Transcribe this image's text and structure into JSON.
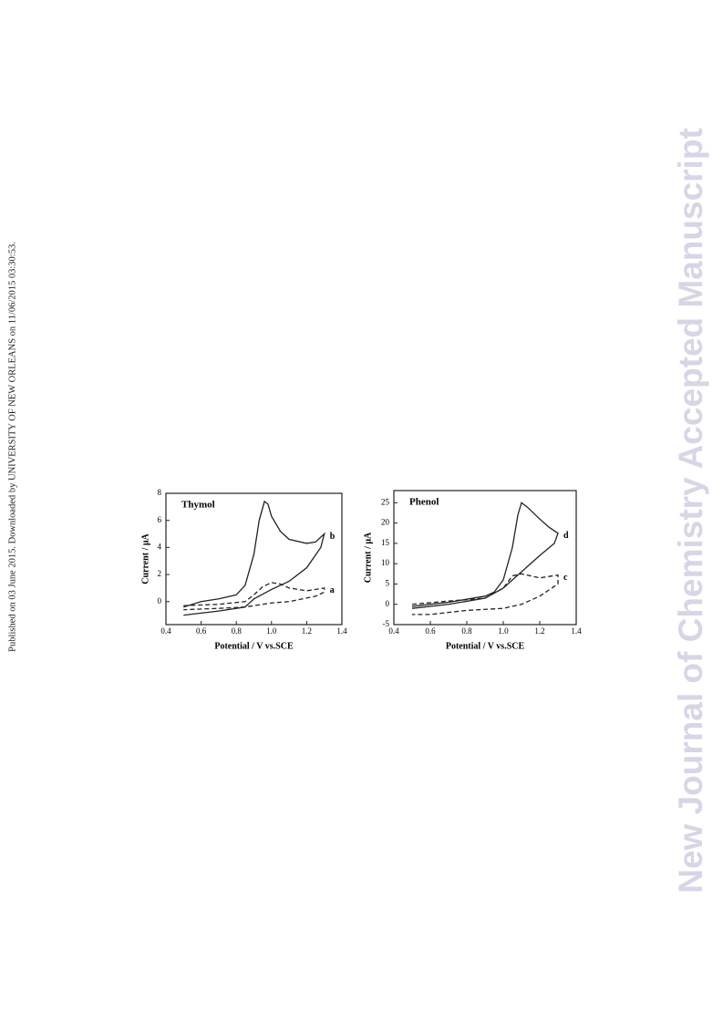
{
  "side_note": "Published on 03 June 2015. Downloaded by UNIVERSITY OF NEW ORLEANS on 11/06/2015 03:30:53.",
  "watermark": "New Journal of Chemistry Accepted Manuscript",
  "chart_data": [
    {
      "type": "line",
      "title": "Thymol",
      "x_label": "Potential / V vs.SCE",
      "y_label": "Current / μA",
      "xlim": [
        0.4,
        1.4
      ],
      "xticks": [
        0.4,
        0.6,
        0.8,
        {
          "value": 1,
          "label": "1.0"
        },
        1.2,
        1.4
      ],
      "ylim": [
        -1.7,
        8
      ],
      "yticks": [
        0,
        2,
        4,
        6,
        8
      ],
      "series": [
        {
          "name": "b",
          "color": "#222222",
          "style": "solid",
          "x": [
            0.5,
            0.6,
            0.7,
            0.8,
            0.85,
            0.9,
            0.93,
            0.96,
            0.98,
            1.0,
            1.05,
            1.1,
            1.2,
            1.25,
            1.3,
            1.28,
            1.2,
            1.1,
            1.0,
            0.9,
            0.85,
            0.7,
            0.5
          ],
          "values": [
            -0.4,
            0.0,
            0.2,
            0.5,
            1.2,
            3.5,
            6.0,
            7.4,
            7.2,
            6.3,
            5.2,
            4.6,
            4.3,
            4.4,
            5.0,
            4.0,
            2.5,
            1.5,
            0.9,
            0.2,
            -0.4,
            -0.7,
            -1.0
          ]
        },
        {
          "name": "a",
          "color": "#222222",
          "style": "dashed",
          "x": [
            0.5,
            0.7,
            0.85,
            0.9,
            0.95,
            1.0,
            1.05,
            1.1,
            1.2,
            1.3,
            1.3,
            1.25,
            1.1,
            1.0,
            0.85,
            0.7,
            0.5
          ],
          "values": [
            -0.3,
            -0.2,
            0.0,
            0.5,
            1.1,
            1.4,
            1.3,
            1.0,
            0.8,
            1.0,
            0.7,
            0.4,
            0.0,
            -0.1,
            -0.4,
            -0.5,
            -0.6
          ]
        }
      ]
    },
    {
      "type": "line",
      "title": "Phenol",
      "x_label": "Potential / V vs.SCE",
      "y_label": "Current / μA",
      "xlim": [
        0.4,
        1.4
      ],
      "xticks": [
        0.4,
        0.6,
        0.8,
        {
          "value": 1,
          "label": "1.0"
        },
        1.2,
        1.4
      ],
      "ylim": [
        -5,
        28
      ],
      "yticks": [
        -5,
        0,
        5,
        10,
        15,
        20,
        25
      ],
      "series": [
        {
          "name": "d",
          "color": "#222222",
          "style": "solid",
          "x": [
            0.5,
            0.7,
            0.9,
            0.95,
            1.0,
            1.05,
            1.08,
            1.1,
            1.13,
            1.2,
            1.25,
            1.3,
            1.28,
            1.2,
            1.1,
            1.0,
            0.9,
            0.7,
            0.5
          ],
          "values": [
            -0.5,
            0.5,
            2,
            3,
            6,
            14,
            22,
            25,
            24,
            21,
            19,
            17.5,
            15,
            12,
            8,
            4,
            1.5,
            0,
            -1
          ]
        },
        {
          "name": "c",
          "color": "#222222",
          "style": "dashed",
          "x": [
            0.5,
            0.7,
            0.9,
            1.0,
            1.05,
            1.1,
            1.2,
            1.3,
            1.3,
            1.2,
            1.1,
            1.0,
            0.8,
            0.6,
            0.5
          ],
          "values": [
            0,
            0.8,
            1.5,
            4,
            7,
            7.5,
            6.5,
            7.2,
            5,
            2,
            0,
            -1,
            -1.5,
            -2.5,
            -2.5
          ]
        }
      ]
    }
  ]
}
